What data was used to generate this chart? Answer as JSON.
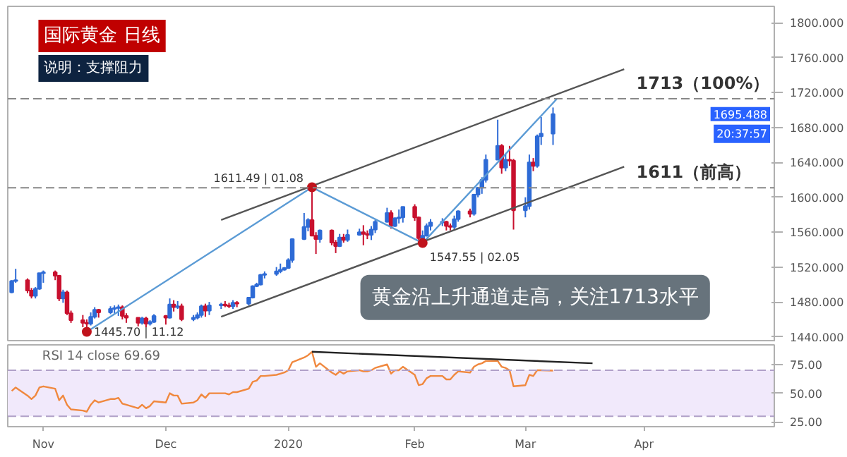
{
  "chart_data": [
    {
      "type": "candlestick",
      "title": "国际黄金 日线",
      "subtitle": "说明：支撑阻力",
      "x": [
        "2019-10-24",
        "2019-10-25",
        "2019-10-28",
        "2019-10-29",
        "2019-10-30",
        "2019-10-31",
        "2019-11-01",
        "2019-11-04",
        "2019-11-05",
        "2019-11-06",
        "2019-11-07",
        "2019-11-08",
        "2019-11-11",
        "2019-11-12",
        "2019-11-13",
        "2019-11-14",
        "2019-11-15",
        "2019-11-18",
        "2019-11-19",
        "2019-11-20",
        "2019-11-21",
        "2019-11-22",
        "2019-11-25",
        "2019-11-26",
        "2019-11-27",
        "2019-11-28",
        "2019-11-29",
        "2019-12-02",
        "2019-12-03",
        "2019-12-04",
        "2019-12-05",
        "2019-12-06",
        "2019-12-09",
        "2019-12-10",
        "2019-12-11",
        "2019-12-12",
        "2019-12-13",
        "2019-12-16",
        "2019-12-17",
        "2019-12-18",
        "2019-12-19",
        "2019-12-20",
        "2019-12-23",
        "2019-12-24",
        "2019-12-25",
        "2019-12-26",
        "2019-12-27",
        "2019-12-30",
        "2019-12-31",
        "2020-01-01",
        "2020-01-02",
        "2020-01-03",
        "2020-01-06",
        "2020-01-07",
        "2020-01-08",
        "2020-01-09",
        "2020-01-10",
        "2020-01-13",
        "2020-01-14",
        "2020-01-15",
        "2020-01-16",
        "2020-01-17",
        "2020-01-20",
        "2020-01-21",
        "2020-01-22",
        "2020-01-23",
        "2020-01-24",
        "2020-01-27",
        "2020-01-28",
        "2020-01-29",
        "2020-01-30",
        "2020-01-31",
        "2020-02-03",
        "2020-02-04",
        "2020-02-05",
        "2020-02-06",
        "2020-02-07",
        "2020-02-10",
        "2020-02-11",
        "2020-02-12",
        "2020-02-13",
        "2020-02-14",
        "2020-02-17",
        "2020-02-18",
        "2020-02-19",
        "2020-02-20",
        "2020-02-21",
        "2020-02-24",
        "2020-02-25",
        "2020-02-26",
        "2020-02-27",
        "2020-02-28",
        "2020-03-02",
        "2020-03-03",
        "2020-03-04",
        "2020-03-05",
        "2020-03-06",
        "2020-03-09"
      ],
      "ohlc": [
        [
          1491,
          1505,
          1490,
          1504
        ],
        [
          1504,
          1518,
          1502,
          1505
        ],
        [
          1505,
          1507,
          1490,
          1493
        ],
        [
          1493,
          1496,
          1484,
          1487
        ],
        [
          1487,
          1497,
          1484,
          1495
        ],
        [
          1495,
          1513,
          1494,
          1513
        ],
        [
          1513,
          1516,
          1502,
          1514
        ],
        [
          1514,
          1516,
          1505,
          1510
        ],
        [
          1510,
          1511,
          1481,
          1484
        ],
        [
          1484,
          1494,
          1479,
          1491
        ],
        [
          1491,
          1493,
          1465,
          1467
        ],
        [
          1467,
          1470,
          1456,
          1459
        ],
        [
          1459,
          1465,
          1451,
          1456
        ],
        [
          1456,
          1460,
          1445.7,
          1455
        ],
        [
          1455,
          1468,
          1453,
          1463
        ],
        [
          1463,
          1474,
          1461,
          1471
        ],
        [
          1471,
          1472,
          1462,
          1468
        ],
        [
          1468,
          1475,
          1466,
          1472
        ],
        [
          1472,
          1476,
          1466,
          1473
        ],
        [
          1473,
          1477,
          1464,
          1474
        ],
        [
          1474,
          1476,
          1460,
          1464
        ],
        [
          1464,
          1467,
          1456,
          1462
        ],
        [
          1462,
          1462,
          1452,
          1456
        ],
        [
          1456,
          1463,
          1454,
          1461
        ],
        [
          1461,
          1463,
          1451,
          1455
        ],
        [
          1455,
          1459,
          1453,
          1457
        ],
        [
          1457,
          1466,
          1456,
          1464
        ],
        [
          1464,
          1465,
          1454,
          1462
        ],
        [
          1462,
          1484,
          1461,
          1477
        ],
        [
          1477,
          1482,
          1469,
          1474
        ],
        [
          1474,
          1481,
          1472,
          1475
        ],
        [
          1475,
          1478,
          1458,
          1460
        ],
        [
          1460,
          1465,
          1458,
          1462
        ],
        [
          1462,
          1468,
          1460,
          1465
        ],
        [
          1465,
          1477,
          1462,
          1475
        ],
        [
          1475,
          1478,
          1463,
          1470
        ],
        [
          1470,
          1480,
          1465,
          1476
        ],
        [
          1476,
          1479,
          1472,
          1477
        ],
        [
          1477,
          1481,
          1474,
          1476
        ],
        [
          1476,
          1479,
          1473,
          1475
        ],
        [
          1475,
          1482,
          1472,
          1479
        ],
        [
          1479,
          1481,
          1474,
          1478
        ],
        [
          1478,
          1485,
          1476,
          1485
        ],
        [
          1485,
          1499,
          1484,
          1498
        ],
        [
          1498,
          1502,
          1497,
          1500
        ],
        [
          1500,
          1512,
          1499,
          1511
        ],
        [
          1511,
          1515,
          1507,
          1512
        ],
        [
          1512,
          1520,
          1510,
          1515
        ],
        [
          1515,
          1524,
          1513,
          1517
        ],
        [
          1517,
          1520,
          1516,
          1519
        ],
        [
          1519,
          1530,
          1518,
          1528
        ],
        [
          1528,
          1553,
          1525,
          1552
        ],
        [
          1552,
          1582,
          1551,
          1566
        ],
        [
          1566,
          1576,
          1561,
          1574
        ],
        [
          1574,
          1611.49,
          1556,
          1556
        ],
        [
          1556,
          1560,
          1535,
          1552
        ],
        [
          1552,
          1563,
          1548,
          1562
        ],
        [
          1562,
          1563,
          1545,
          1548
        ],
        [
          1548,
          1551,
          1536,
          1544
        ],
        [
          1544,
          1558,
          1543,
          1554
        ],
        [
          1554,
          1558,
          1548,
          1551
        ],
        [
          1551,
          1563,
          1549,
          1557
        ],
        [
          1557,
          1564,
          1556,
          1560
        ],
        [
          1560,
          1568,
          1545,
          1558
        ],
        [
          1558,
          1562,
          1552,
          1557
        ],
        [
          1557,
          1567,
          1551,
          1563
        ],
        [
          1563,
          1574,
          1559,
          1572
        ],
        [
          1572,
          1588,
          1571,
          1582
        ],
        [
          1582,
          1585,
          1564,
          1567
        ],
        [
          1567,
          1577,
          1566,
          1576
        ],
        [
          1576,
          1586,
          1570,
          1577
        ],
        [
          1577,
          1589,
          1571,
          1589
        ],
        [
          1589,
          1592,
          1573,
          1577
        ],
        [
          1577,
          1578,
          1551,
          1553
        ],
        [
          1553,
          1562,
          1547.55,
          1556
        ],
        [
          1556,
          1570,
          1555,
          1567
        ],
        [
          1567,
          1575,
          1562,
          1571
        ],
        [
          1571,
          1576,
          1567,
          1572
        ],
        [
          1572,
          1573,
          1562,
          1567
        ],
        [
          1567,
          1570,
          1562,
          1566
        ],
        [
          1566,
          1579,
          1563,
          1575
        ],
        [
          1575,
          1585,
          1572,
          1584
        ],
        [
          1584,
          1587,
          1577,
          1581
        ],
        [
          1581,
          1604,
          1579,
          1603
        ],
        [
          1603,
          1612,
          1600,
          1611
        ],
        [
          1611,
          1623,
          1604,
          1620
        ],
        [
          1620,
          1649,
          1617,
          1643
        ],
        [
          1643,
          1689,
          1643,
          1659
        ],
        [
          1659,
          1661,
          1627,
          1634
        ],
        [
          1634,
          1650,
          1630,
          1643
        ],
        [
          1643,
          1659,
          1636,
          1642
        ],
        [
          1642,
          1644,
          1563,
          1585
        ],
        [
          1585,
          1600,
          1577,
          1590
        ],
        [
          1590,
          1649,
          1586,
          1640
        ],
        [
          1640,
          1645,
          1630,
          1636
        ],
        [
          1636,
          1672,
          1634,
          1670
        ],
        [
          1670,
          1692,
          1660,
          1673
        ],
        [
          1673,
          1703,
          1660,
          1695.488
        ]
      ],
      "colors": [
        "#2e6bd6",
        "#2e6bd6",
        "#c8102e",
        "#c8102e",
        "#2e6bd6",
        "#2e6bd6",
        "#2e6bd6",
        "#c8102e",
        "#c8102e",
        "#2e6bd6",
        "#c8102e",
        "#c8102e",
        "#c8102e",
        "#c8102e",
        "#2e6bd6",
        "#2e6bd6",
        "#c8102e",
        "#2e6bd6",
        "#2e6bd6",
        "#2e6bd6",
        "#c8102e",
        "#c8102e",
        "#c8102e",
        "#2e6bd6",
        "#c8102e",
        "#2e6bd6",
        "#2e6bd6",
        "#c8102e",
        "#2e6bd6",
        "#c8102e",
        "#2e6bd6",
        "#c8102e",
        "#2e6bd6",
        "#2e6bd6",
        "#2e6bd6",
        "#c8102e",
        "#2e6bd6",
        "#2e6bd6",
        "#c8102e",
        "#c8102e",
        "#2e6bd6",
        "#c8102e",
        "#2e6bd6",
        "#2e6bd6",
        "#2e6bd6",
        "#2e6bd6",
        "#2e6bd6",
        "#2e6bd6",
        "#2e6bd6",
        "#2e6bd6",
        "#2e6bd6",
        "#2e6bd6",
        "#2e6bd6",
        "#2e6bd6",
        "#c8102e",
        "#c8102e",
        "#2e6bd6",
        "#c8102e",
        "#c8102e",
        "#2e6bd6",
        "#c8102e",
        "#2e6bd6",
        "#2e6bd6",
        "#c8102e",
        "#c8102e",
        "#2e6bd6",
        "#2e6bd6",
        "#2e6bd6",
        "#c8102e",
        "#2e6bd6",
        "#2e6bd6",
        "#2e6bd6",
        "#c8102e",
        "#c8102e",
        "#2e6bd6",
        "#2e6bd6",
        "#2e6bd6",
        "#2e6bd6",
        "#c8102e",
        "#c8102e",
        "#2e6bd6",
        "#2e6bd6",
        "#c8102e",
        "#2e6bd6",
        "#2e6bd6",
        "#2e6bd6",
        "#2e6bd6",
        "#2e6bd6",
        "#c8102e",
        "#2e6bd6",
        "#c8102e",
        "#c8102e",
        "#2e6bd6",
        "#2e6bd6",
        "#c8102e",
        "#2e6bd6",
        "#2e6bd6",
        "#2e6bd6"
      ],
      "series": [
        {
          "type": "line",
          "color": "#5b9bd5",
          "x": [
            "2019-11-12",
            "2020-01-08",
            "2020-02-05",
            "2020-03-10"
          ],
          "values": [
            1445.7,
            1611.49,
            1547.55,
            1713
          ]
        },
        {
          "type": "line",
          "color": "#555555",
          "x": [
            "2019-12-16",
            "2020-03-27"
          ],
          "values": [
            1574,
            1747
          ]
        },
        {
          "type": "line",
          "color": "#555555",
          "x": [
            "2019-12-16",
            "2020-03-27"
          ],
          "values": [
            1463,
            1635
          ]
        }
      ],
      "ref_lines": [
        {
          "axis": "y",
          "value": 1713,
          "label": "1713（100%）",
          "color": "#888888",
          "line_style": "dashed"
        },
        {
          "axis": "y",
          "value": 1611,
          "label": "1611（前高）",
          "color": "#888888",
          "line_style": "dashed"
        }
      ],
      "annotations": [
        "黄金沿上升通道走高，关注1713水平",
        "1695.488",
        "20:37:57",
        {
          "text": "1611.49 | 01.08",
          "x": "2020-01-08",
          "y": 1611.49
        },
        {
          "text": "1445.70 | 11.12",
          "x": "2019-11-12",
          "y": 1445.7
        },
        {
          "text": "1547.55 | 02.05",
          "x": "2020-02-05",
          "y": 1547.55
        }
      ],
      "xlim": [
        "2019-10-23",
        "2020-05-04"
      ],
      "ylim": [
        1434,
        1819
      ],
      "yticks": [
        {
          "value": 1440,
          "label": "1440.000"
        },
        {
          "value": 1480,
          "label": "1480.000"
        },
        {
          "value": 1520,
          "label": "1520.000"
        },
        {
          "value": 1560,
          "label": "1560.000"
        },
        {
          "value": 1600,
          "label": "1600.000"
        },
        {
          "value": 1640,
          "label": "1640.000"
        },
        {
          "value": 1680,
          "label": "1680.000"
        },
        {
          "value": 1720,
          "label": "1720.000"
        },
        {
          "value": 1760,
          "label": "1760.000"
        },
        {
          "value": 1800,
          "label": "1800.000"
        }
      ],
      "tick_labels": "y"
    },
    {
      "type": "line",
      "title": "RSI 14 close 69.69",
      "x": [
        "2019-10-24",
        "2019-10-25",
        "2019-10-28",
        "2019-10-29",
        "2019-10-30",
        "2019-10-31",
        "2019-11-01",
        "2019-11-04",
        "2019-11-05",
        "2019-11-06",
        "2019-11-07",
        "2019-11-08",
        "2019-11-11",
        "2019-11-12",
        "2019-11-13",
        "2019-11-14",
        "2019-11-15",
        "2019-11-18",
        "2019-11-19",
        "2019-11-20",
        "2019-11-21",
        "2019-11-22",
        "2019-11-25",
        "2019-11-26",
        "2019-11-27",
        "2019-11-28",
        "2019-11-29",
        "2019-12-02",
        "2019-12-03",
        "2019-12-04",
        "2019-12-05",
        "2019-12-06",
        "2019-12-09",
        "2019-12-10",
        "2019-12-11",
        "2019-12-12",
        "2019-12-13",
        "2019-12-16",
        "2019-12-17",
        "2019-12-18",
        "2019-12-19",
        "2019-12-20",
        "2019-12-23",
        "2019-12-24",
        "2019-12-25",
        "2019-12-26",
        "2019-12-27",
        "2019-12-30",
        "2019-12-31",
        "2020-01-01",
        "2020-01-02",
        "2020-01-03",
        "2020-01-06",
        "2020-01-07",
        "2020-01-08",
        "2020-01-09",
        "2020-01-10",
        "2020-01-13",
        "2020-01-14",
        "2020-01-15",
        "2020-01-16",
        "2020-01-17",
        "2020-01-20",
        "2020-01-21",
        "2020-01-22",
        "2020-01-23",
        "2020-01-24",
        "2020-01-27",
        "2020-01-28",
        "2020-01-29",
        "2020-01-30",
        "2020-01-31",
        "2020-02-03",
        "2020-02-04",
        "2020-02-05",
        "2020-02-06",
        "2020-02-07",
        "2020-02-10",
        "2020-02-11",
        "2020-02-12",
        "2020-02-13",
        "2020-02-14",
        "2020-02-17",
        "2020-02-18",
        "2020-02-19",
        "2020-02-20",
        "2020-02-21",
        "2020-02-24",
        "2020-02-25",
        "2020-02-26",
        "2020-02-27",
        "2020-02-28",
        "2020-03-02",
        "2020-03-03",
        "2020-03-04",
        "2020-03-05",
        "2020-03-06",
        "2020-03-09"
      ],
      "series": [
        {
          "color": "#f0883e",
          "values": [
            52,
            55,
            48,
            45,
            48,
            55,
            56,
            54,
            44,
            48,
            40,
            36,
            35,
            34,
            40,
            44,
            42,
            45,
            45,
            46,
            41,
            40,
            37,
            40,
            37,
            39,
            43,
            42,
            50,
            48,
            48,
            41,
            42,
            44,
            49,
            46,
            50,
            50,
            50,
            49,
            51,
            51,
            54,
            60,
            61,
            65,
            65,
            66,
            67,
            68,
            70,
            77,
            81,
            83,
            86,
            73,
            76,
            68,
            66,
            69,
            67,
            69,
            70,
            69,
            69,
            70,
            72,
            75,
            67,
            70,
            70,
            73,
            66,
            57,
            58,
            63,
            65,
            65,
            62,
            62,
            66,
            69,
            68,
            73,
            75,
            76,
            78,
            78,
            73,
            72,
            70,
            56,
            57,
            66,
            65,
            70,
            70,
            69.69
          ]
        },
        {
          "type": "line",
          "color": "#222222",
          "x": [
            "2020-01-08",
            "2020-03-19"
          ],
          "values": [
            86,
            76
          ]
        }
      ],
      "ref_lines": [
        {
          "axis": "y",
          "value": 70,
          "color": "#b0a0c8",
          "line_style": "dashed"
        },
        {
          "axis": "y",
          "value": 30,
          "color": "#b0a0c8",
          "line_style": "dashed"
        }
      ],
      "bands": [
        {
          "axis": "y",
          "from": 30,
          "to": 70,
          "color": "#f1e9fb"
        }
      ],
      "xlim": [
        "2019-10-23",
        "2020-05-04"
      ],
      "ylim": [
        21,
        92
      ],
      "xticks": [
        {
          "value": "2019-11-01",
          "label": "Nov"
        },
        {
          "value": "2019-12-02",
          "label": "Dec"
        },
        {
          "value": "2020-01-02",
          "label": "2020"
        },
        {
          "value": "2020-02-03",
          "label": "Feb"
        },
        {
          "value": "2020-03-02",
          "label": "Mar"
        },
        {
          "value": "2020-04-01",
          "label": "Apr"
        }
      ],
      "yticks": [
        {
          "value": 25,
          "label": "25.00"
        },
        {
          "value": 50,
          "label": "50.00"
        },
        {
          "value": 75,
          "label": "75.00"
        }
      ]
    }
  ]
}
